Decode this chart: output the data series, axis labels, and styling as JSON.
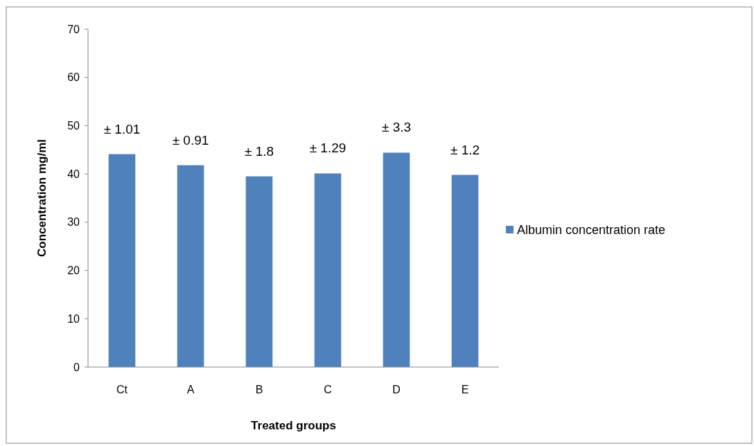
{
  "chart_data": {
    "type": "bar",
    "xlabel": "Treated groups",
    "ylabel": "Concentration mg/ml",
    "categories": [
      "Ct",
      "A",
      "B",
      "C",
      "D",
      "E"
    ],
    "series": [
      {
        "name": "Albumin concentration rate",
        "color": "#4f81bd",
        "values": [
          44.1,
          41.8,
          39.5,
          40.1,
          44.4,
          39.8
        ]
      }
    ],
    "ylim": [
      0,
      70
    ],
    "yticks": [
      0,
      10,
      20,
      30,
      40,
      50,
      60,
      70
    ],
    "grid": false,
    "legend": "right",
    "annotations": [
      "± 1.01",
      "± 0.91",
      "± 1.8",
      "± 1.29",
      "± 3.3",
      "± 1.2"
    ]
  }
}
